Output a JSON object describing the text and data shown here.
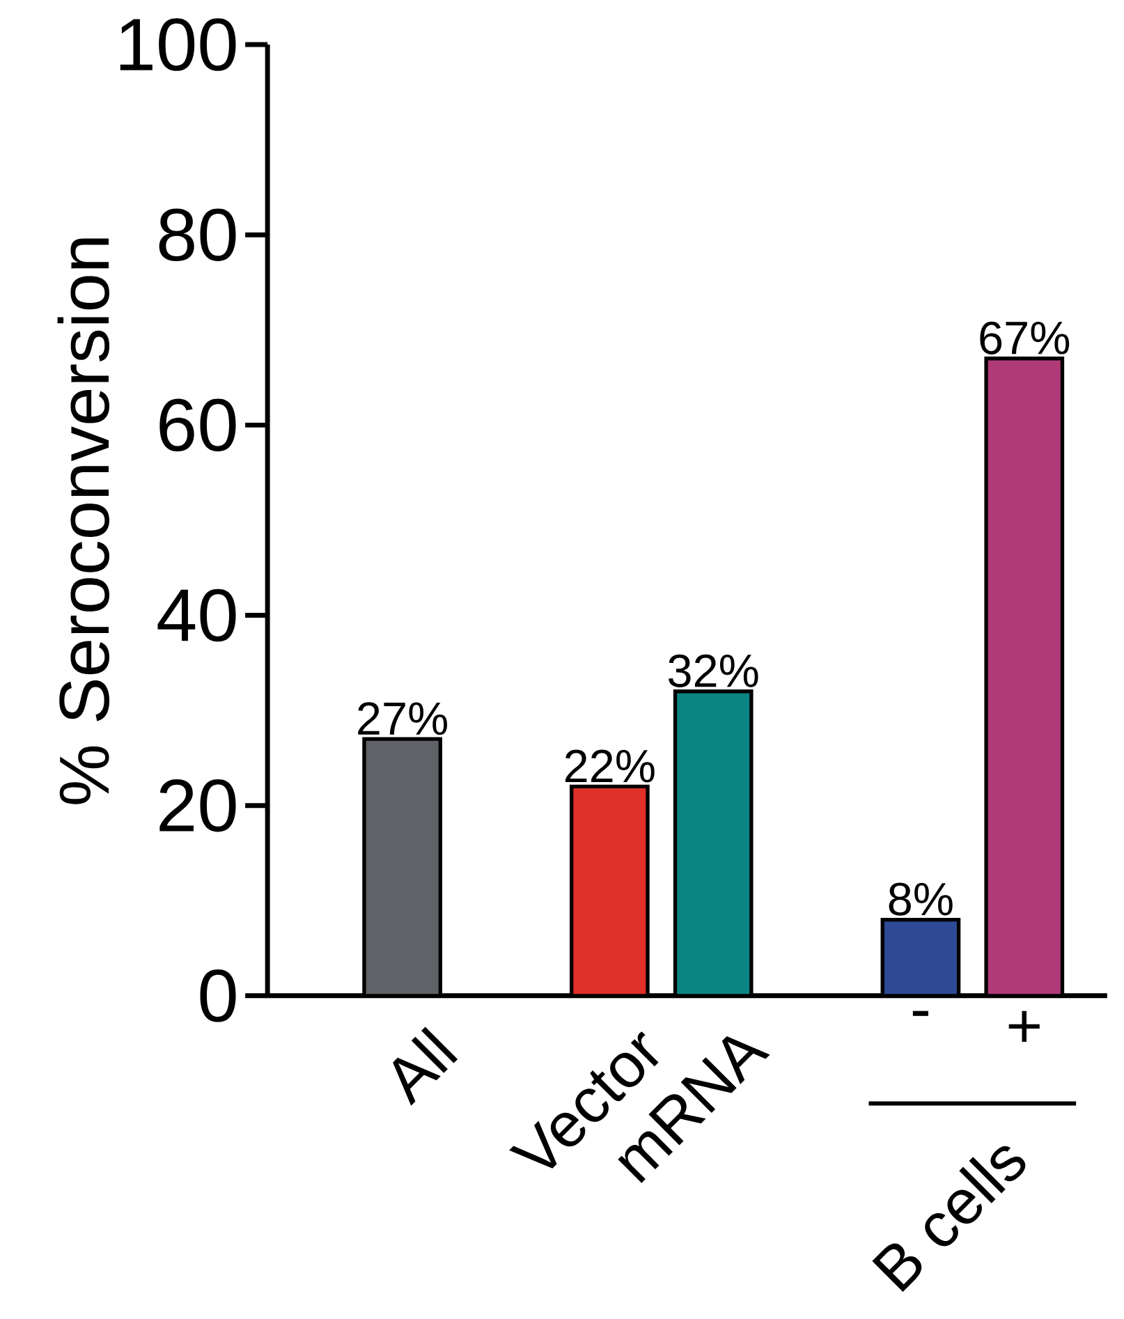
{
  "chart_data": {
    "type": "bar",
    "ylabel": "% Seroconversion",
    "categories": [
      "All",
      null,
      "Vector",
      "mRNA",
      null,
      "-",
      "+"
    ],
    "values": [
      27,
      null,
      22,
      32,
      null,
      8,
      67
    ],
    "value_labels": [
      "27%",
      null,
      "22%",
      "32%",
      null,
      "8%",
      "67%"
    ],
    "colors": [
      "#5f6266",
      null,
      "#e0302a",
      "#0a8582",
      null,
      "#2e4a94",
      "#b03b78"
    ],
    "ylim": [
      0,
      100
    ],
    "yticks": [
      0,
      20,
      40,
      60,
      80,
      100
    ],
    "annotations": [
      "B cells"
    ]
  }
}
